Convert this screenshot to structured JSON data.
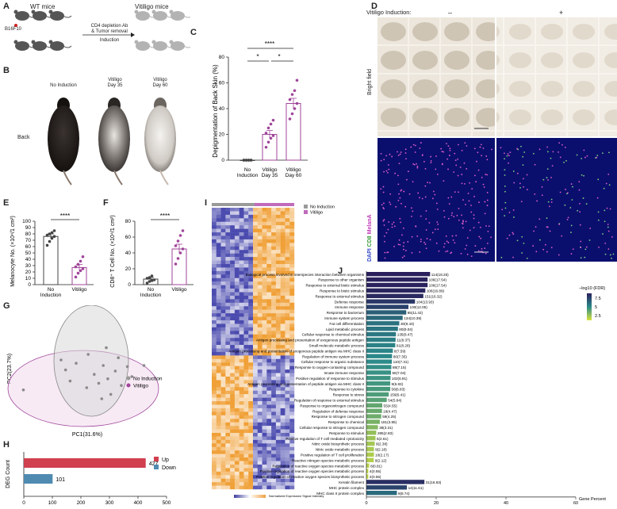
{
  "panels": {
    "A": {
      "label": "A",
      "wt_title": "WT mice",
      "vitiligo_title": "Vitiligo mice",
      "tumor": "B16F10",
      "arrow_top": "CD4 depletion Ab",
      "arrow_mid": "& Tumor removal",
      "arrow_bottom": "Induction"
    },
    "B": {
      "label": "B",
      "row_label": "Back",
      "col1": "No Induction",
      "col2_l1": "Vitiligo",
      "col2_l2": "Day 35",
      "col3_l1": "Vitiligo",
      "col3_l2": "Day 60"
    },
    "C": {
      "label": "C",
      "sig_top": "****",
      "sig_left": "*",
      "sig_right": "*",
      "cat1_l1": "No",
      "cat1_l2": "Induction",
      "cat2_l1": "Vitiligo",
      "cat2_l2": "Day 35",
      "cat3_l1": "Vitiligo",
      "cat3_l2": "Day 60"
    },
    "D": {
      "label": "D",
      "header": "Vitiligo Induction:",
      "minus": "–",
      "plus": "+",
      "bright_field": "Bright field",
      "if_dapi": "DAPI",
      "if_cd8": "CD8",
      "if_melana": "MelanA"
    },
    "E": {
      "label": "E",
      "sig": "****",
      "cat1_l1": "No",
      "cat1_l2": "Induction",
      "cat2": "Vitiligo"
    },
    "F": {
      "label": "F",
      "sig": "****",
      "cat1_l1": "No",
      "cat1_l2": "Induction",
      "cat2": "Vitiligo"
    },
    "G": {
      "label": "G",
      "legend_1": "No Induction",
      "legend_2": "Vitiligo"
    },
    "H": {
      "label": "H",
      "legend_up": "Up",
      "legend_down": "Down"
    },
    "I": {
      "label": "I",
      "legend_1": "No Induction",
      "legend_2": "Vitiligo",
      "scale_title": "Normalized Expression Signal Intensity"
    },
    "J": {
      "label": "J",
      "legend_title": "−log10 (FDR)",
      "legend_ticks": [
        "7.5",
        "5",
        "2.5"
      ]
    }
  },
  "colors": {
    "vitiligo": "#a0459a",
    "up": "#d0404f",
    "down": "#4f8bb0",
    "no_induction_fill": "#cfcfcf",
    "vitiligo_fill": "#f2d9ee"
  },
  "chart_data": [
    {
      "panel": "C",
      "type": "bar",
      "ylabel": "Depigmentation of Back Skin (%)",
      "ylim": [
        0,
        80
      ],
      "yticks": [
        0,
        20,
        40,
        60,
        80
      ],
      "categories": [
        "No Induction",
        "Vitiligo Day 35",
        "Vitiligo Day 60"
      ],
      "values": [
        0,
        20,
        44
      ],
      "errors": [
        0,
        3,
        4
      ],
      "points": [
        [
          0,
          0,
          0,
          0,
          0,
          0,
          0,
          0
        ],
        [
          10,
          14,
          17,
          19,
          21,
          25,
          28,
          31
        ],
        [
          32,
          36,
          40,
          44,
          47,
          51,
          54,
          62
        ]
      ]
    },
    {
      "panel": "E",
      "type": "bar",
      "ylabel": "Melanocyte No. (×10⁴/1 cm²)",
      "ylim": [
        0,
        100
      ],
      "yticks": [
        0,
        10,
        20,
        30,
        40,
        50,
        60,
        70,
        80,
        90,
        100
      ],
      "categories": [
        "No Induction",
        "Vitiligo"
      ],
      "values": [
        76,
        27
      ],
      "errors": [
        4,
        5
      ],
      "points": [
        [
          62,
          68,
          73,
          76,
          78,
          80,
          82,
          85
        ],
        [
          12,
          18,
          22,
          25,
          28,
          32,
          37,
          44
        ]
      ]
    },
    {
      "panel": "F",
      "type": "bar",
      "ylabel": "CD8⁺ T Cell No. (×10⁴/1 cm²)",
      "ylim": [
        0,
        80
      ],
      "yticks": [
        0,
        20,
        40,
        60,
        80
      ],
      "categories": [
        "No Induction",
        "Vitiligo"
      ],
      "values": [
        7,
        45
      ],
      "errors": [
        2,
        6
      ],
      "points": [
        [
          2,
          4,
          5,
          6,
          8,
          9,
          11
        ],
        [
          26,
          33,
          40,
          45,
          49,
          55,
          62,
          68
        ]
      ]
    },
    {
      "panel": "G",
      "type": "scatter",
      "xlabel": "PC1(31.6%)",
      "ylabel": "PC2(23.7%)",
      "points": [
        [
          0.05,
          0.62
        ],
        [
          0.33,
          0.44
        ],
        [
          0.4,
          0.38
        ],
        [
          0.47,
          0.6
        ],
        [
          0.52,
          0.48
        ],
        [
          0.55,
          0.56
        ],
        [
          0.58,
          0.4
        ],
        [
          0.61,
          0.52
        ],
        [
          0.63,
          0.66
        ],
        [
          0.66,
          0.45
        ],
        [
          0.7,
          0.58
        ],
        [
          0.74,
          0.41
        ],
        [
          0.77,
          0.5
        ],
        [
          0.48,
          0.3
        ],
        [
          0.57,
          0.7
        ],
        [
          0.68,
          0.33
        ],
        [
          0.36,
          0.54
        ],
        [
          0.3,
          0.35
        ],
        [
          0.85,
          0.4
        ],
        [
          0.6,
          0.24
        ]
      ]
    },
    {
      "panel": "H",
      "type": "bar",
      "orientation": "horizontal",
      "ylabel": "DEG Count",
      "xlim": [
        0,
        500
      ],
      "xticks": [
        0,
        100,
        200,
        300,
        400,
        500
      ],
      "categories": [
        "Up",
        "Down"
      ],
      "values": [
        427,
        101
      ]
    },
    {
      "panel": "J",
      "type": "bar",
      "orientation": "horizontal",
      "xlabel": "Gene Percent",
      "xlim": [
        0,
        60
      ],
      "xticks": [
        0,
        20,
        40,
        60
      ],
      "terms": [
        {
          "name": "Biological process involved in interspecies interaction between organisms",
          "label": "114(18.25)",
          "pct": 18.25,
          "fdr": 8.5
        },
        {
          "name": "Response to other organism",
          "label": "106(17.54)",
          "pct": 17.54,
          "fdr": 8.4
        },
        {
          "name": "Response to external biotic stimulus",
          "label": "106(17.54)",
          "pct": 17.54,
          "fdr": 8.4
        },
        {
          "name": "Response to biotic stimulus",
          "label": "106(16.89)",
          "pct": 16.89,
          "fdr": 8.3
        },
        {
          "name": "Response to external stimulus",
          "label": "151(16.32)",
          "pct": 16.32,
          "fdr": 8.2
        },
        {
          "name": "Defense response",
          "label": "104(13.93)",
          "pct": 13.93,
          "fdr": 7.8
        },
        {
          "name": "Immune response",
          "label": "100(12.05)",
          "pct": 12.05,
          "fdr": 7.5
        },
        {
          "name": "Response to bacterium",
          "label": "65(11.42)",
          "pct": 11.42,
          "fdr": 6.6
        },
        {
          "name": "Immune system process",
          "label": "134(10.39)",
          "pct": 10.39,
          "fdr": 6.3
        },
        {
          "name": "Fat cell differentiation",
          "label": "30(9.43)",
          "pct": 9.43,
          "fdr": 6.0
        },
        {
          "name": "Lipid metabolic process",
          "label": "80(9.04)",
          "pct": 9.04,
          "fdr": 5.9
        },
        {
          "name": "Cellular response to chemical stimulus",
          "label": "135(8.47)",
          "pct": 8.47,
          "fdr": 5.8
        },
        {
          "name": "Antigen processing and presentation of exogenous peptide antigen",
          "label": "11(8.37)",
          "pct": 8.37,
          "fdr": 5.6
        },
        {
          "name": "Small molecule metabolic process",
          "label": "91(8.28)",
          "pct": 8.28,
          "fdr": 5.5
        },
        {
          "name": "Antigen processing and presentation of exogenous peptide antigen via MHC class II",
          "label": "8(7.59)",
          "pct": 7.59,
          "fdr": 5.4
        },
        {
          "name": "Regulation of immune system process",
          "label": "80(7.35)",
          "pct": 7.35,
          "fdr": 5.3
        },
        {
          "name": "Cellular response to organic substance",
          "label": "110(7.31)",
          "pct": 7.31,
          "fdr": 5.2
        },
        {
          "name": "Response to oxygen-containing compound",
          "label": "88(7.15)",
          "pct": 7.15,
          "fdr": 5.1
        },
        {
          "name": "Innate immune response",
          "label": "56(7.04)",
          "pct": 7.04,
          "fdr": 5.0
        },
        {
          "name": "Positive regulation of response to stimulus",
          "label": "102(6.91)",
          "pct": 6.91,
          "fdr": 4.9
        },
        {
          "name": "Antigen processing and presentation of peptide antigen via MHC class II",
          "label": "9(6.83)",
          "pct": 6.83,
          "fdr": 4.8
        },
        {
          "name": "Response to cytokine",
          "label": "58(6.83)",
          "pct": 6.83,
          "fdr": 4.7
        },
        {
          "name": "Response to stress",
          "label": "159(6.41)",
          "pct": 6.41,
          "fdr": 4.6
        },
        {
          "name": "Regulation of response to external stimulus",
          "label": "54(5.84)",
          "pct": 5.84,
          "fdr": 4.4
        },
        {
          "name": "Response to organonitrogen compound",
          "label": "55(4.55)",
          "pct": 4.55,
          "fdr": 4.2
        },
        {
          "name": "Regulation of defense response",
          "label": "18(4.47)",
          "pct": 4.47,
          "fdr": 4.1
        },
        {
          "name": "Response to nitrogen compound",
          "label": "59(4.25)",
          "pct": 4.25,
          "fdr": 4.0
        },
        {
          "name": "Response to chemical",
          "label": "181(3.85)",
          "pct": 3.85,
          "fdr": 3.8
        },
        {
          "name": "Cellular response to nitrogen compound",
          "label": "38(3.31)",
          "pct": 3.31,
          "fdr": 3.6
        },
        {
          "name": "Response to stimulus",
          "label": "285(2.83)",
          "pct": 2.83,
          "fdr": 3.3
        },
        {
          "name": "Positive regulation of T cell mediated cytotoxicity",
          "label": "5(2.61)",
          "pct": 2.61,
          "fdr": 3.1
        },
        {
          "name": "Nitric oxide biosynthetic process",
          "label": "9(2.38)",
          "pct": 2.38,
          "fdr": 3.0
        },
        {
          "name": "Nitric oxide metabolic process",
          "label": "9(2.18)",
          "pct": 2.18,
          "fdr": 2.9
        },
        {
          "name": "Positive regulation of T cell proliferation",
          "label": "10(2.17)",
          "pct": 2.17,
          "fdr": 2.8
        },
        {
          "name": "Reactive nitrogen species metabolic process",
          "label": "9(2.12)",
          "pct": 2.12,
          "fdr": 2.7
        },
        {
          "name": "Regulation of reactive oxygen species metabolic process",
          "label": "8(0.81)",
          "pct": 0.81,
          "fdr": 2.6
        },
        {
          "name": "Positive regulation of reactive oxygen species metabolic process",
          "label": "4(0.55)",
          "pct": 0.55,
          "fdr": 2.5
        },
        {
          "name": "Positive regulation of reactive oxygen species biosynthetic process",
          "label": "2(0.55)",
          "pct": 0.55,
          "fdr": 2.4
        },
        {
          "name": "Keratin filament",
          "label": "31(16.63)",
          "pct": 16.63,
          "fdr": 8.0
        },
        {
          "name": "MHC protein complex",
          "label": "14(11.61)",
          "pct": 11.61,
          "fdr": 7.4
        },
        {
          "name": "MHC class II protein complex",
          "label": "8(8.74)",
          "pct": 8.74,
          "fdr": 6.2
        }
      ]
    }
  ]
}
